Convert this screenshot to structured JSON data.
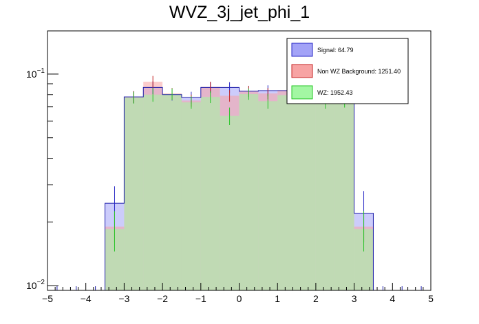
{
  "chart_data": {
    "type": "bar",
    "title": "WVZ_3j_jet_phi_1",
    "xlabel": "",
    "ylabel": "",
    "xlim": [
      -5,
      5
    ],
    "ylim": [
      0.0095,
      0.16
    ],
    "ylog": true,
    "grid": false,
    "legend_position": "top-right",
    "bin_edges": [
      -5,
      -4.5,
      -4,
      -3.5,
      -3,
      -2.5,
      -2,
      -1.5,
      -1,
      -0.5,
      0,
      0.5,
      1,
      1.5,
      2,
      2.5,
      3,
      3.5,
      4,
      4.5,
      5
    ],
    "x_tick_labels": [
      "−5",
      "−4",
      "−3",
      "−2",
      "−1",
      "0",
      "1",
      "2",
      "3",
      "4",
      "5"
    ],
    "y_tick_labels": [
      {
        "value": 0.1,
        "base": "10",
        "exp": "−1"
      },
      {
        "value": 0.01,
        "base": "10",
        "exp": "−2"
      }
    ],
    "series": [
      {
        "name": "Signal: 64.79",
        "fill": "#a3a3f7",
        "edge": "#2626c4",
        "values": [
          0,
          0,
          0,
          0.0245,
          0.078,
          0.0865,
          0.08,
          0.0775,
          0.0865,
          0.0865,
          0.083,
          0.0835,
          0.0835,
          0.082,
          0.0785,
          0.078,
          0.022,
          0,
          0,
          0
        ],
        "errors": [
          0,
          0,
          0,
          0.005,
          0.005,
          0.006,
          0.005,
          0.005,
          0.005,
          0.005,
          0.005,
          0.005,
          0.005,
          0.005,
          0.005,
          0.005,
          0.006,
          0,
          0,
          0
        ]
      },
      {
        "name": "Non WZ Background: 1251.40",
        "fill": "#f7a3a3",
        "edge": "#c42626",
        "values": [
          0,
          0,
          0,
          0.019,
          0.078,
          0.092,
          0.081,
          0.075,
          0.087,
          0.079,
          0.083,
          0.081,
          0.084,
          0.082,
          0.08,
          0.078,
          0.019,
          0,
          0,
          0
        ],
        "errors": [
          0,
          0,
          0,
          0.003,
          0.005,
          0.006,
          0.005,
          0.005,
          0.005,
          0.005,
          0.005,
          0.005,
          0.005,
          0.005,
          0.005,
          0.005,
          0.003,
          0,
          0,
          0
        ]
      },
      {
        "name": "WZ: 1952.43",
        "fill": "#a3f7a3",
        "edge": "#26c426",
        "values": [
          0,
          0,
          0,
          0.0185,
          0.0775,
          0.08,
          0.0805,
          0.0735,
          0.078,
          0.0635,
          0.0805,
          0.0745,
          0.0795,
          0.0815,
          0.0735,
          0.0745,
          0.0185,
          0,
          0,
          0
        ],
        "errors": [
          0,
          0,
          0,
          0.004,
          0.005,
          0.006,
          0.005,
          0.005,
          0.005,
          0.006,
          0.005,
          0.006,
          0.005,
          0.005,
          0.005,
          0.005,
          0.004,
          0,
          0,
          0
        ]
      }
    ]
  }
}
